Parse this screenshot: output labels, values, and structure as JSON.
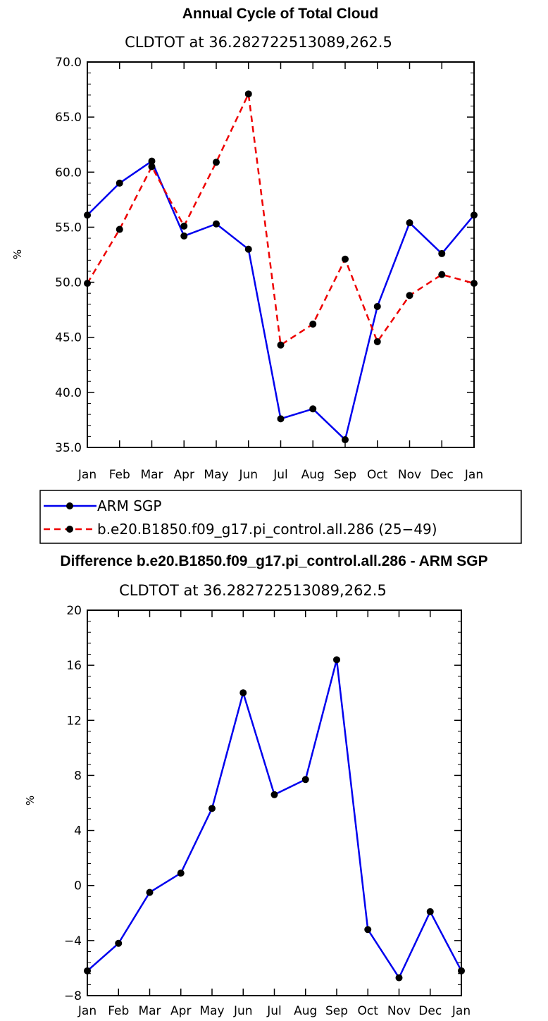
{
  "chart_data": [
    {
      "type": "line",
      "title": "Annual Cycle of Total Cloud",
      "subtitle": "CLDTOT at 36.282722513089,262.5",
      "ylabel": "%",
      "categories": [
        "Jan",
        "Feb",
        "Mar",
        "Apr",
        "May",
        "Jun",
        "Jul",
        "Aug",
        "Sep",
        "Oct",
        "Nov",
        "Dec",
        "Jan"
      ],
      "ylim": [
        35,
        70
      ],
      "yticks": [
        35,
        40,
        45,
        50,
        55,
        60,
        65,
        70
      ],
      "ytick_labels": [
        "35.0",
        "40.0",
        "45.0",
        "50.0",
        "55.0",
        "60.0",
        "65.0",
        "70.0"
      ],
      "grid": false,
      "legend_position": "below",
      "series": [
        {
          "name": "ARM SGP",
          "color": "#0000ee",
          "dash": "solid",
          "values": [
            56.1,
            59.0,
            61.0,
            54.2,
            55.3,
            53.0,
            37.6,
            38.5,
            35.7,
            47.8,
            55.4,
            52.6,
            56.1
          ]
        },
        {
          "name": "b.e20.B1850.f09_g17.pi_control.all.286 (25−49)",
          "color": "#ee0000",
          "dash": "dashed",
          "values": [
            49.9,
            54.8,
            60.5,
            55.1,
            60.9,
            67.1,
            44.3,
            46.2,
            52.1,
            44.6,
            48.8,
            50.7,
            49.9
          ]
        }
      ]
    },
    {
      "type": "line",
      "title": "Difference b.e20.B1850.f09_g17.pi_control.all.286 - ARM SGP",
      "subtitle": "CLDTOT at 36.282722513089,262.5",
      "ylabel": "%",
      "categories": [
        "Jan",
        "Feb",
        "Mar",
        "Apr",
        "May",
        "Jun",
        "Jul",
        "Aug",
        "Sep",
        "Oct",
        "Nov",
        "Dec",
        "Jan"
      ],
      "ylim": [
        -8,
        20
      ],
      "yticks": [
        -8,
        -4,
        0,
        4,
        8,
        12,
        16,
        20
      ],
      "ytick_labels": [
        "−8",
        "−4",
        "0",
        "4",
        "8",
        "12",
        "16",
        "20"
      ],
      "grid": false,
      "series": [
        {
          "name": "",
          "color": "#0000ee",
          "dash": "solid",
          "values": [
            -6.2,
            -4.2,
            -0.5,
            0.9,
            5.6,
            14.0,
            6.6,
            7.7,
            16.4,
            -3.2,
            -6.7,
            -1.9,
            -6.2
          ]
        }
      ]
    }
  ]
}
